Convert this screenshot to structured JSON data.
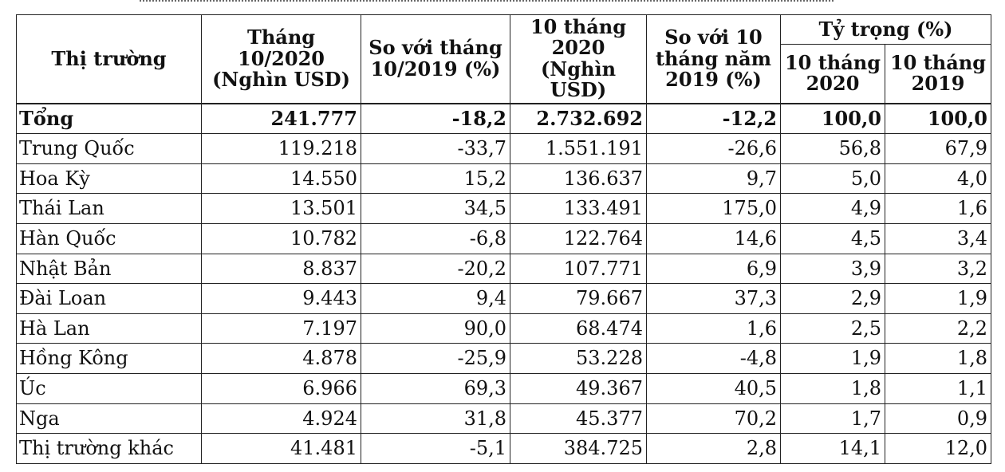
{
  "headers": {
    "market": "Thị trường",
    "oct2020": "Tháng 10/2020 (Nghìn USD)",
    "vs_oct2019": "So với tháng 10/2019 (%)",
    "ten_months_2020": "10 tháng 2020 (Nghìn USD)",
    "vs_ten_months_2019": "So với 10 tháng năm 2019 (%)",
    "share": "Tỷ trọng (%)",
    "share_2020": "10 tháng 2020",
    "share_2019": "10 tháng 2019"
  },
  "rows": [
    {
      "market": "Tổng",
      "oct2020": "241.777",
      "vs_oct2019": "-18,2",
      "ten_months_2020": "2.732.692",
      "vs_ten_months_2019": "-12,2",
      "share_2020": "100,0",
      "share_2019": "100,0"
    },
    {
      "market": "Trung Quốc",
      "oct2020": "119.218",
      "vs_oct2019": "-33,7",
      "ten_months_2020": "1.551.191",
      "vs_ten_months_2019": "-26,6",
      "share_2020": "56,8",
      "share_2019": "67,9"
    },
    {
      "market": "Hoa Kỳ",
      "oct2020": "14.550",
      "vs_oct2019": "15,2",
      "ten_months_2020": "136.637",
      "vs_ten_months_2019": "9,7",
      "share_2020": "5,0",
      "share_2019": "4,0"
    },
    {
      "market": "Thái Lan",
      "oct2020": "13.501",
      "vs_oct2019": "34,5",
      "ten_months_2020": "133.491",
      "vs_ten_months_2019": "175,0",
      "share_2020": "4,9",
      "share_2019": "1,6"
    },
    {
      "market": "Hàn Quốc",
      "oct2020": "10.782",
      "vs_oct2019": "-6,8",
      "ten_months_2020": "122.764",
      "vs_ten_months_2019": "14,6",
      "share_2020": "4,5",
      "share_2019": "3,4"
    },
    {
      "market": "Nhật Bản",
      "oct2020": "8.837",
      "vs_oct2019": "-20,2",
      "ten_months_2020": "107.771",
      "vs_ten_months_2019": "6,9",
      "share_2020": "3,9",
      "share_2019": "3,2"
    },
    {
      "market": "Đài Loan",
      "oct2020": "9.443",
      "vs_oct2019": "9,4",
      "ten_months_2020": "79.667",
      "vs_ten_months_2019": "37,3",
      "share_2020": "2,9",
      "share_2019": "1,9"
    },
    {
      "market": "Hà Lan",
      "oct2020": "7.197",
      "vs_oct2019": "90,0",
      "ten_months_2020": "68.474",
      "vs_ten_months_2019": "1,6",
      "share_2020": "2,5",
      "share_2019": "2,2"
    },
    {
      "market": "Hồng Kông",
      "oct2020": "4.878",
      "vs_oct2019": "-25,9",
      "ten_months_2020": "53.228",
      "vs_ten_months_2019": "-4,8",
      "share_2020": "1,9",
      "share_2019": "1,8"
    },
    {
      "market": "Úc",
      "oct2020": "6.966",
      "vs_oct2019": "69,3",
      "ten_months_2020": "49.367",
      "vs_ten_months_2019": "40,5",
      "share_2020": "1,8",
      "share_2019": "1,1"
    },
    {
      "market": "Nga",
      "oct2020": "4.924",
      "vs_oct2019": "31,8",
      "ten_months_2020": "45.377",
      "vs_ten_months_2019": "70,2",
      "share_2020": "1,7",
      "share_2019": "0,9"
    },
    {
      "market": "Thị trường khác",
      "oct2020": "41.481",
      "vs_oct2019": "-5,1",
      "ten_months_2020": "384.725",
      "vs_ten_months_2019": "2,8",
      "share_2020": "14,1",
      "share_2019": "12,0"
    }
  ]
}
